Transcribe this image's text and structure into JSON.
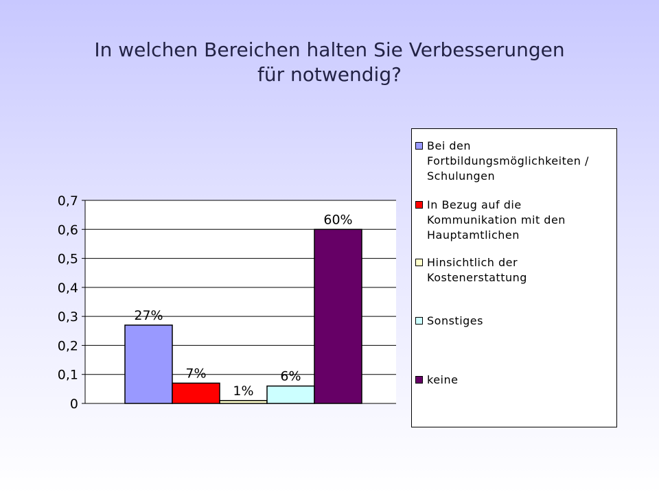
{
  "slide": {
    "title": "In welchen Bereichen halten Sie Verbesserungen\nfür notwendig?"
  },
  "chart_data": {
    "type": "bar",
    "title": "",
    "xlabel": "",
    "ylabel": "",
    "ylim": [
      0,
      0.7
    ],
    "yticks": [
      "0",
      "0,1",
      "0,2",
      "0,3",
      "0,4",
      "0,5",
      "0,6",
      "0,7"
    ],
    "grid": true,
    "legend_position": "right",
    "series": [
      {
        "name": "Bei den Fortbildungsmöglichkeiten / Schulungen",
        "value": 0.27,
        "label": "27%",
        "color": "#9999ff"
      },
      {
        "name": "In Bezug auf die Kommunikation mit den Hauptamtlichen",
        "value": 0.07,
        "label": "7%",
        "color": "#ff0000"
      },
      {
        "name": "Hinsichtlich der Kostenerstattung",
        "value": 0.01,
        "label": "1%",
        "color": "#ffffcc"
      },
      {
        "name": "Sonstiges",
        "value": 0.06,
        "label": "6%",
        "color": "#ccffff"
      },
      {
        "name": "keine",
        "value": 0.6,
        "label": "60%",
        "color": "#660066"
      }
    ]
  }
}
